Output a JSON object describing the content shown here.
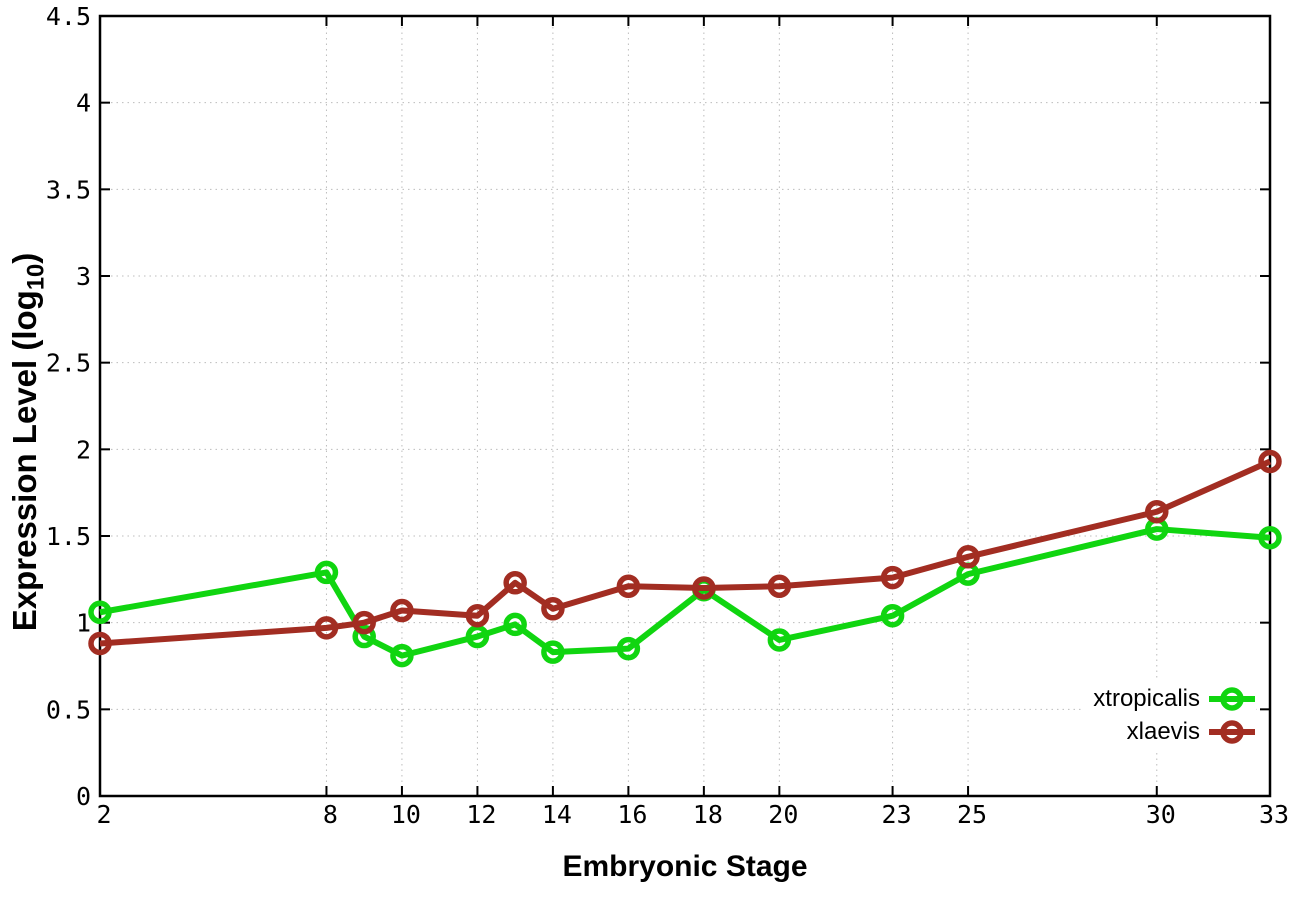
{
  "page": {
    "background": "#ffffff"
  },
  "axis": {
    "x_title": "Embryonic Stage",
    "y_title_prefix": "Expression Level (log",
    "y_title_sub": "10",
    "y_title_suffix": ")"
  },
  "chart_data": {
    "type": "line",
    "x": [
      2,
      8,
      9,
      10,
      12,
      13,
      14,
      16,
      18,
      20,
      23,
      25,
      30,
      33
    ],
    "series": [
      {
        "name": "xtropicalis",
        "color": "#10d510",
        "marker": "open-circle",
        "values": [
          1.06,
          1.29,
          0.92,
          0.81,
          0.92,
          0.99,
          0.83,
          0.85,
          1.19,
          0.9,
          1.04,
          1.28,
          1.54,
          1.49
        ]
      },
      {
        "name": "xlaevis",
        "color": "#a22d22",
        "marker": "open-circle",
        "values": [
          0.88,
          0.97,
          1.0,
          1.07,
          1.04,
          1.23,
          1.08,
          1.21,
          1.2,
          1.21,
          1.26,
          1.38,
          1.64,
          1.93
        ]
      }
    ],
    "xlabel": "Embryonic Stage",
    "ylabel": "Expression Level (log10)",
    "xlim": [
      2,
      33
    ],
    "ylim": [
      0,
      4.5
    ],
    "x_ticks": [
      2,
      8,
      10,
      12,
      14,
      16,
      18,
      20,
      23,
      25,
      30,
      33
    ],
    "y_ticks": [
      0,
      0.5,
      1,
      1.5,
      2,
      2.5,
      3,
      3.5,
      4,
      4.5
    ],
    "grid": true,
    "grid_style": "dotted",
    "grid_color": "#bcbcbc",
    "axis_color": "#000000",
    "legend_position": "inside-bottom-right"
  }
}
